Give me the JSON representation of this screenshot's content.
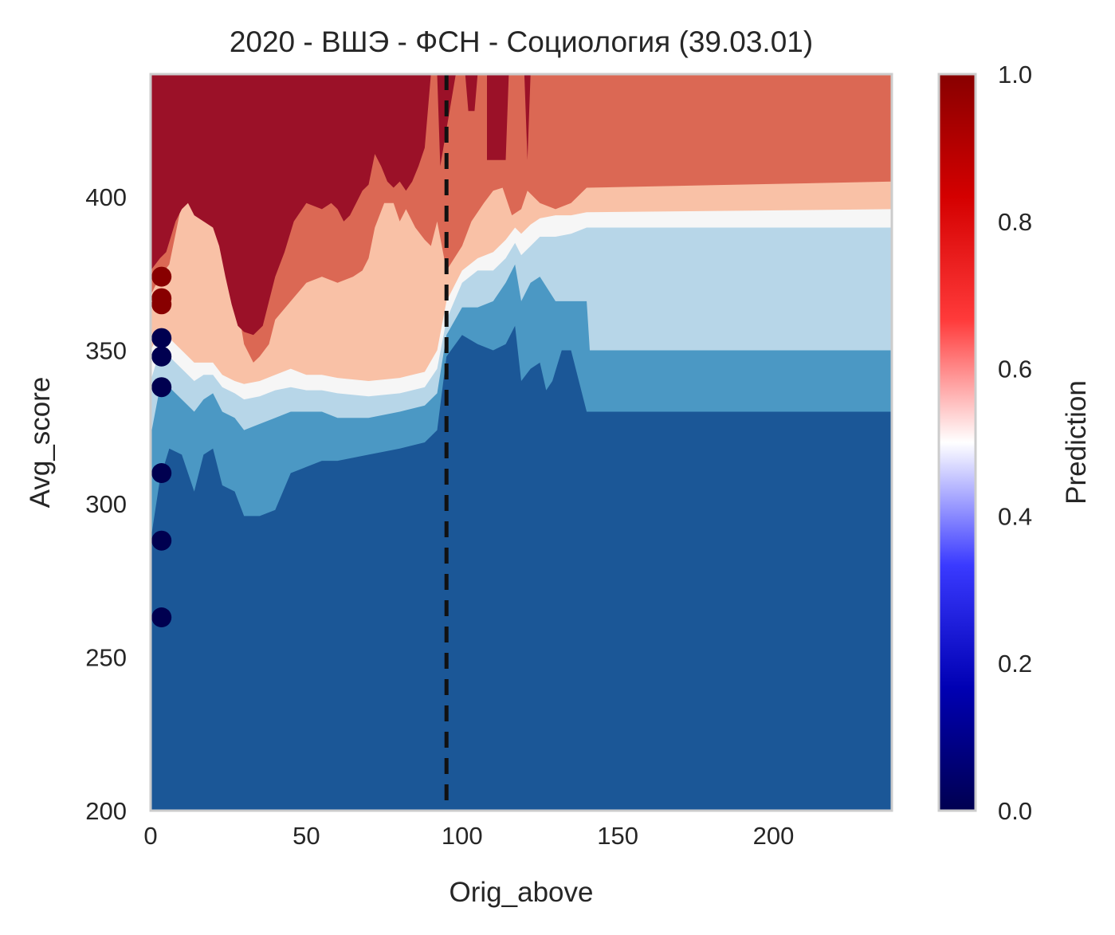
{
  "chart_data": {
    "type": "heatmap",
    "title": "2020 - ВШЭ - ФСН - Социология (39.03.01)",
    "xlabel": "Orig_above",
    "ylabel": "Avg_score",
    "xlim": [
      0,
      238
    ],
    "ylim": [
      200,
      440
    ],
    "xticks": [
      0,
      50,
      100,
      150,
      200
    ],
    "yticks": [
      200,
      250,
      300,
      350,
      400
    ],
    "threshold_x": 95,
    "colorbar": {
      "label": "Prediction",
      "range": [
        0,
        1
      ],
      "ticks": [
        0.0,
        0.2,
        0.4,
        0.6,
        0.8,
        1.0
      ],
      "tick_labels": [
        "0.0",
        "0.2",
        "0.4",
        "0.6",
        "0.8",
        "1.0"
      ],
      "colors": [
        "#000050",
        "#0000b3",
        "#3a3aff",
        "#ffffff",
        "#ff3a3a",
        "#d40000",
        "#880000"
      ]
    },
    "levels": [
      {
        "range": "0.0-0.2",
        "color": "#1b5797"
      },
      {
        "range": "0.2-0.35",
        "color": "#4b98c4"
      },
      {
        "range": "0.35-0.45",
        "color": "#b7d6e8"
      },
      {
        "range": "0.45-0.55",
        "color": "#f6f6f6"
      },
      {
        "range": "0.55-0.65",
        "color": "#f9c1a6"
      },
      {
        "range": "0.65-0.8",
        "color": "#db6854"
      },
      {
        "range": "0.8-1.0",
        "color": "#9b1128"
      }
    ],
    "contours": [
      {
        "level": 1,
        "boundary": [
          [
            0,
            288
          ],
          [
            3,
            308
          ],
          [
            6,
            318
          ],
          [
            10,
            316
          ],
          [
            14,
            304
          ],
          [
            17,
            316
          ],
          [
            20,
            318
          ],
          [
            23,
            306
          ],
          [
            27,
            304
          ],
          [
            30,
            296
          ],
          [
            35,
            296
          ],
          [
            40,
            298
          ],
          [
            45,
            310
          ],
          [
            50,
            312
          ],
          [
            55,
            314
          ],
          [
            60,
            314
          ],
          [
            70,
            316
          ],
          [
            80,
            318
          ],
          [
            88,
            320
          ],
          [
            92,
            324
          ],
          [
            95,
            348
          ],
          [
            100,
            355
          ],
          [
            105,
            352
          ],
          [
            110,
            350
          ],
          [
            114,
            352
          ],
          [
            117,
            358
          ],
          [
            119,
            340
          ],
          [
            122,
            344
          ],
          [
            125,
            346
          ],
          [
            127,
            337
          ],
          [
            129,
            340
          ],
          [
            132,
            350
          ],
          [
            135,
            350
          ],
          [
            140,
            330
          ],
          [
            238,
            330
          ]
        ]
      },
      {
        "level": 2,
        "boundary": [
          [
            0,
            322
          ],
          [
            3,
            338
          ],
          [
            6,
            338
          ],
          [
            10,
            334
          ],
          [
            14,
            330
          ],
          [
            17,
            334
          ],
          [
            20,
            336
          ],
          [
            23,
            330
          ],
          [
            27,
            328
          ],
          [
            30,
            324
          ],
          [
            35,
            326
          ],
          [
            40,
            328
          ],
          [
            45,
            330
          ],
          [
            50,
            330
          ],
          [
            55,
            330
          ],
          [
            60,
            328
          ],
          [
            70,
            328
          ],
          [
            80,
            330
          ],
          [
            88,
            332
          ],
          [
            92,
            336
          ],
          [
            95,
            355
          ],
          [
            100,
            364
          ],
          [
            105,
            364
          ],
          [
            110,
            366
          ],
          [
            114,
            372
          ],
          [
            117,
            378
          ],
          [
            119,
            366
          ],
          [
            122,
            372
          ],
          [
            125,
            374
          ],
          [
            130,
            366
          ],
          [
            135,
            366
          ],
          [
            140,
            366
          ],
          [
            141,
            350
          ],
          [
            238,
            350
          ]
        ]
      },
      {
        "level": 3,
        "boundary": [
          [
            0,
            340
          ],
          [
            3,
            350
          ],
          [
            6,
            348
          ],
          [
            10,
            344
          ],
          [
            14,
            340
          ],
          [
            17,
            342
          ],
          [
            20,
            342
          ],
          [
            23,
            338
          ],
          [
            27,
            336
          ],
          [
            30,
            334
          ],
          [
            35,
            335
          ],
          [
            40,
            337
          ],
          [
            45,
            338
          ],
          [
            50,
            337
          ],
          [
            55,
            337
          ],
          [
            60,
            336
          ],
          [
            70,
            335
          ],
          [
            80,
            336
          ],
          [
            88,
            338
          ],
          [
            92,
            344
          ],
          [
            95,
            360
          ],
          [
            100,
            372
          ],
          [
            105,
            376
          ],
          [
            110,
            376
          ],
          [
            114,
            380
          ],
          [
            117,
            385
          ],
          [
            119,
            381
          ],
          [
            122,
            384
          ],
          [
            125,
            387
          ],
          [
            130,
            387
          ],
          [
            135,
            388
          ],
          [
            140,
            390
          ],
          [
            238,
            390
          ]
        ]
      },
      {
        "level": 4,
        "boundary": [
          [
            0,
            350
          ],
          [
            3,
            356
          ],
          [
            6,
            354
          ],
          [
            10,
            350
          ],
          [
            14,
            346
          ],
          [
            17,
            346
          ],
          [
            20,
            346
          ],
          [
            23,
            342
          ],
          [
            27,
            340
          ],
          [
            30,
            339
          ],
          [
            35,
            340
          ],
          [
            40,
            342
          ],
          [
            45,
            344
          ],
          [
            50,
            342
          ],
          [
            55,
            342
          ],
          [
            60,
            341
          ],
          [
            70,
            340
          ],
          [
            80,
            341
          ],
          [
            88,
            343
          ],
          [
            92,
            350
          ],
          [
            95,
            366
          ],
          [
            100,
            376
          ],
          [
            105,
            380
          ],
          [
            110,
            382
          ],
          [
            114,
            386
          ],
          [
            117,
            390
          ],
          [
            119,
            388
          ],
          [
            122,
            391
          ],
          [
            125,
            393
          ],
          [
            130,
            394
          ],
          [
            135,
            394
          ],
          [
            140,
            395
          ],
          [
            238,
            396
          ]
        ]
      },
      {
        "level": 5,
        "boundary": [
          [
            0,
            368
          ],
          [
            3,
            374
          ],
          [
            6,
            378
          ],
          [
            8,
            388
          ],
          [
            10,
            398
          ],
          [
            12,
            402
          ],
          [
            15,
            396
          ],
          [
            18,
            394
          ],
          [
            20,
            392
          ],
          [
            23,
            384
          ],
          [
            25,
            374
          ],
          [
            28,
            364
          ],
          [
            30,
            352
          ],
          [
            33,
            346
          ],
          [
            35,
            348
          ],
          [
            38,
            352
          ],
          [
            40,
            360
          ],
          [
            45,
            366
          ],
          [
            50,
            372
          ],
          [
            55,
            374
          ],
          [
            60,
            372
          ],
          [
            65,
            374
          ],
          [
            68,
            376
          ],
          [
            70,
            380
          ],
          [
            72,
            390
          ],
          [
            75,
            398
          ],
          [
            78,
            398
          ],
          [
            80,
            392
          ],
          [
            82,
            396
          ],
          [
            85,
            390
          ],
          [
            88,
            386
          ],
          [
            90,
            384
          ],
          [
            92,
            392
          ],
          [
            95,
            376
          ],
          [
            100,
            384
          ],
          [
            103,
            392
          ],
          [
            107,
            398
          ],
          [
            110,
            402
          ],
          [
            113,
            403
          ],
          [
            116,
            394
          ],
          [
            119,
            396
          ],
          [
            121,
            402
          ],
          [
            125,
            398
          ],
          [
            130,
            396
          ],
          [
            135,
            398
          ],
          [
            140,
            403
          ],
          [
            238,
            405
          ]
        ]
      },
      {
        "level": 6,
        "boundary": [
          [
            0,
            376
          ],
          [
            3,
            380
          ],
          [
            5,
            382
          ],
          [
            8,
            392
          ],
          [
            10,
            396
          ],
          [
            12,
            398
          ],
          [
            14,
            394
          ],
          [
            17,
            392
          ],
          [
            20,
            390
          ],
          [
            22,
            384
          ],
          [
            24,
            374
          ],
          [
            26,
            365
          ],
          [
            28,
            358
          ],
          [
            30,
            356
          ],
          [
            33,
            355
          ],
          [
            36,
            358
          ],
          [
            38,
            366
          ],
          [
            40,
            374
          ],
          [
            43,
            382
          ],
          [
            46,
            392
          ],
          [
            50,
            398
          ],
          [
            55,
            396
          ],
          [
            58,
            398
          ],
          [
            60,
            396
          ],
          [
            62,
            392
          ],
          [
            64,
            394
          ],
          [
            66,
            398
          ],
          [
            68,
            402
          ],
          [
            70,
            404
          ],
          [
            72,
            414
          ],
          [
            74,
            410
          ],
          [
            76,
            405
          ],
          [
            78,
            403
          ],
          [
            80,
            405
          ],
          [
            82,
            402
          ],
          [
            84,
            405
          ],
          [
            86,
            410
          ],
          [
            88,
            416
          ],
          [
            90,
            440
          ],
          [
            92,
            440
          ],
          [
            93,
            410
          ],
          [
            98,
            440
          ],
          [
            101,
            440
          ],
          [
            102,
            428
          ],
          [
            104,
            428
          ],
          [
            105,
            440
          ],
          [
            108,
            440
          ],
          [
            108,
            412
          ],
          [
            114,
            412
          ],
          [
            115,
            440
          ],
          [
            120,
            440
          ],
          [
            121,
            412
          ],
          [
            122,
            440
          ]
        ]
      }
    ],
    "points": [
      {
        "x": 3.5,
        "y": 374,
        "prediction": 1
      },
      {
        "x": 3.5,
        "y": 367,
        "prediction": 1
      },
      {
        "x": 3.5,
        "y": 365,
        "prediction": 1
      },
      {
        "x": 3.5,
        "y": 354,
        "prediction": 0
      },
      {
        "x": 3.5,
        "y": 348,
        "prediction": 0
      },
      {
        "x": 3.5,
        "y": 338,
        "prediction": 0
      },
      {
        "x": 3.5,
        "y": 310,
        "prediction": 0
      },
      {
        "x": 3.5,
        "y": 288,
        "prediction": 0
      },
      {
        "x": 3.5,
        "y": 263,
        "prediction": 0
      }
    ]
  }
}
